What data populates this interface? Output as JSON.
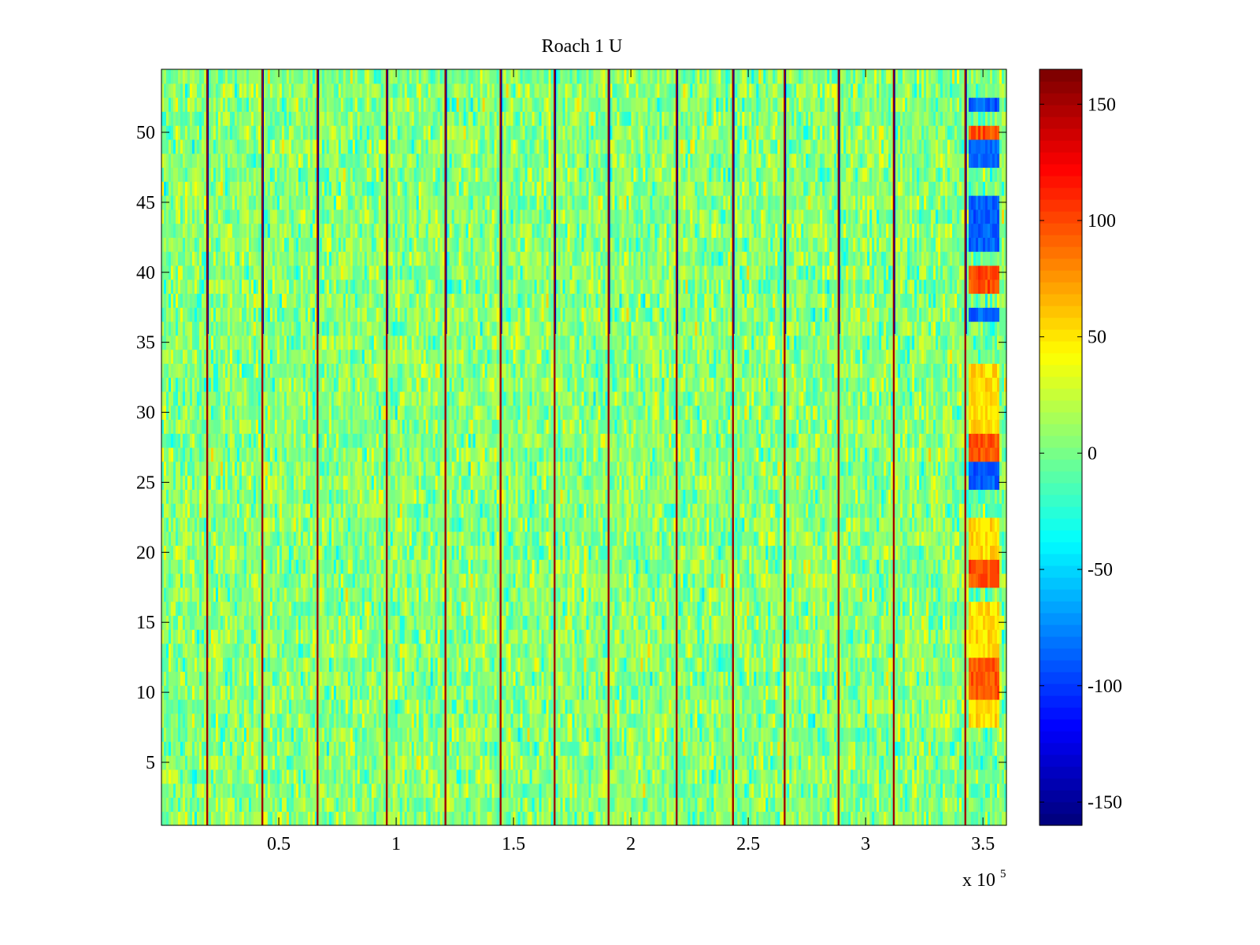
{
  "chart_data": {
    "type": "heatmap",
    "title": "Roach 1 U",
    "xlabel": "",
    "ylabel": "",
    "x_range": [
      0,
      360000
    ],
    "y_range": [
      0.5,
      54.5
    ],
    "x_ticks": [
      50000,
      100000,
      150000,
      200000,
      250000,
      300000,
      350000
    ],
    "x_tick_labels": [
      "0.5",
      "1",
      "1.5",
      "2",
      "2.5",
      "3",
      "3.5"
    ],
    "x_multiplier_label": "x 10",
    "x_multiplier_exponent": "5",
    "y_ticks": [
      5,
      10,
      15,
      20,
      25,
      30,
      35,
      40,
      45,
      50
    ],
    "y_tick_labels": [
      "5",
      "10",
      "15",
      "20",
      "25",
      "30",
      "35",
      "40",
      "45",
      "50"
    ],
    "rows": 54,
    "colormap": "jet",
    "colorbar": {
      "range": [
        -160,
        165
      ],
      "ticks": [
        -150,
        -100,
        -50,
        0,
        50,
        100,
        150
      ],
      "tick_labels": [
        "-150",
        "-100",
        "-50",
        "0",
        "50",
        "100",
        "150"
      ],
      "levels": 64
    },
    "background_value_range": [
      -40,
      40
    ],
    "vertical_streaks_x": [
      19500,
      43000,
      66500,
      96000,
      121000,
      144500,
      167500,
      190500,
      219500,
      243500,
      265500,
      288500,
      312000,
      342500
    ],
    "edge_region": {
      "x_range": [
        343000,
        356000
      ],
      "hot_rows": [
        10,
        11,
        12,
        18,
        19,
        27,
        28,
        39,
        40,
        50
      ],
      "warm_rows": [
        8,
        9,
        13,
        14,
        15,
        16,
        20,
        21,
        22,
        29,
        30,
        31,
        32,
        33
      ],
      "cold_rows": [
        25,
        26,
        37,
        42,
        43,
        44,
        45,
        48,
        49,
        52
      ]
    }
  }
}
